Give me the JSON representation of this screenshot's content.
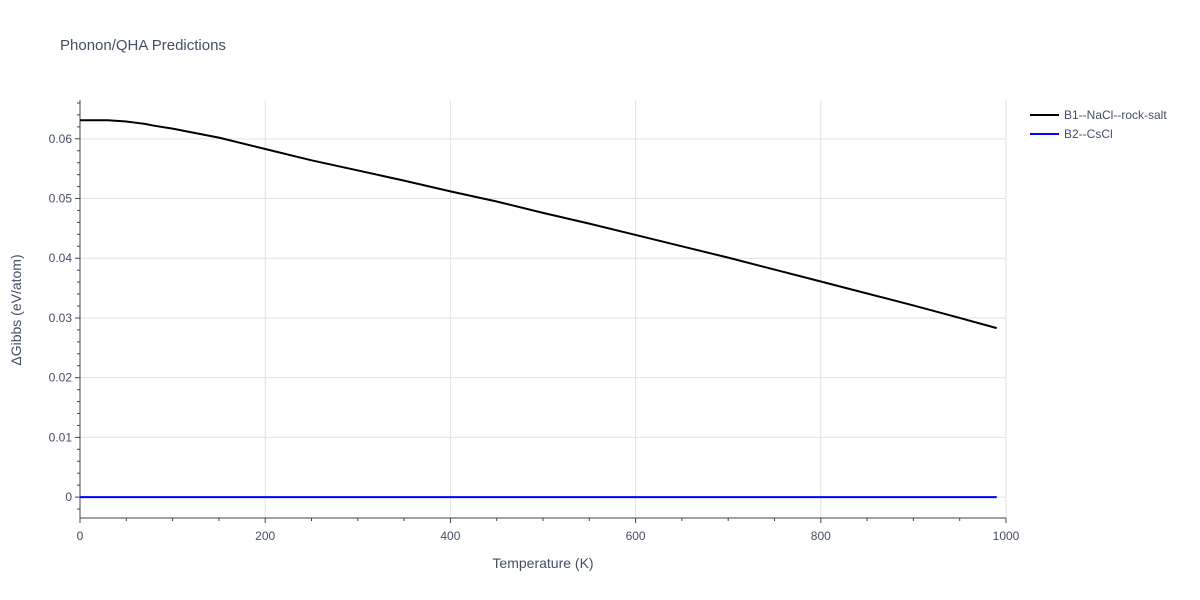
{
  "chart_data": {
    "type": "line",
    "title": "Phonon/QHA Predictions",
    "xlabel": "Temperature (K)",
    "ylabel": "ΔGibbs (eV/atom)",
    "xlim": [
      0,
      1000
    ],
    "ylim": [
      -0.0035,
      0.0665
    ],
    "x_ticks": [
      0,
      200,
      400,
      600,
      800,
      1000
    ],
    "x_tick_labels": [
      "0",
      "200",
      "400",
      "600",
      "800",
      "1000"
    ],
    "y_ticks": [
      0,
      0.01,
      0.02,
      0.03,
      0.04,
      0.05,
      0.06
    ],
    "y_tick_labels": [
      "0",
      "0.01",
      "0.02",
      "0.03",
      "0.04",
      "0.05",
      "0.06"
    ],
    "grid": true,
    "legend_position": "top-right",
    "series": [
      {
        "name": "B1--NaCl--rock-salt",
        "color": "#000000",
        "x": [
          0,
          10,
          20,
          30,
          40,
          50,
          60,
          70,
          80,
          100,
          120,
          150,
          200,
          250,
          300,
          350,
          400,
          450,
          500,
          550,
          600,
          650,
          700,
          750,
          800,
          850,
          900,
          950,
          990
        ],
        "y": [
          0.0631,
          0.0631,
          0.0631,
          0.0631,
          0.063,
          0.0629,
          0.0627,
          0.0625,
          0.0622,
          0.0617,
          0.0611,
          0.0602,
          0.0583,
          0.0564,
          0.0547,
          0.053,
          0.0512,
          0.0495,
          0.0476,
          0.0458,
          0.0439,
          0.042,
          0.0401,
          0.0381,
          0.0361,
          0.0341,
          0.0321,
          0.03,
          0.0283
        ]
      },
      {
        "name": "B2--CsCl",
        "color": "#0000ff",
        "x": [
          0,
          990
        ],
        "y": [
          0,
          0
        ]
      }
    ]
  }
}
